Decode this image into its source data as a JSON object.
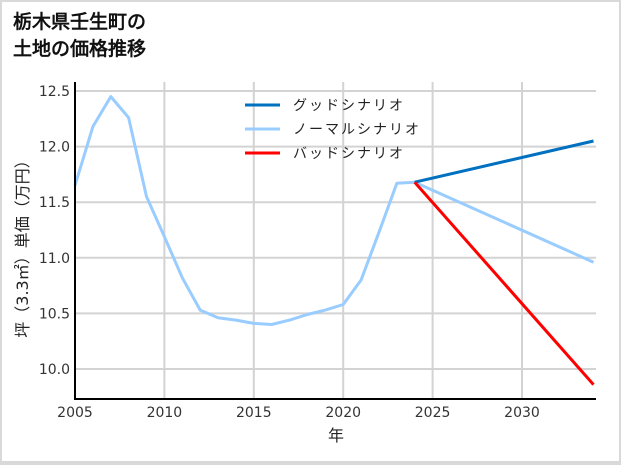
{
  "title_line1": "栃木県壬生町の",
  "title_line2": "土地の価格推移",
  "chart_data": {
    "type": "line",
    "title": "栃木県壬生町の土地の価格推移",
    "xlabel": "年",
    "ylabel": "坪（3.3㎡）単価（万円）",
    "xlim": [
      2005,
      2034
    ],
    "ylim": [
      9.75,
      12.6
    ],
    "grid": true,
    "legend_position": "upper center",
    "x_ticks": [
      2005,
      2010,
      2015,
      2020,
      2025,
      2030
    ],
    "y_ticks": [
      10.0,
      10.5,
      11.0,
      11.5,
      12.0,
      12.5
    ],
    "x_tick_labels": [
      "2005",
      "2010",
      "2015",
      "2020",
      "2025",
      "2030"
    ],
    "y_tick_labels": [
      "10.0",
      "10.5",
      "11.0",
      "11.5",
      "12.0",
      "12.5"
    ],
    "series": [
      {
        "name": "グッドシナリオ",
        "color": "#0070c0",
        "x": [
          2024,
          2034
        ],
        "values": [
          11.68,
          12.05
        ]
      },
      {
        "name": "ノーマルシナリオ",
        "color": "#99ccff",
        "x": [
          2005,
          2006,
          2007,
          2008,
          2009,
          2010,
          2011,
          2012,
          2013,
          2014,
          2015,
          2016,
          2017,
          2018,
          2019,
          2020,
          2021,
          2022,
          2023,
          2024,
          2034
        ],
        "values": [
          11.65,
          12.18,
          12.45,
          12.26,
          11.55,
          11.19,
          10.82,
          10.53,
          10.46,
          10.44,
          10.41,
          10.4,
          10.44,
          10.49,
          10.53,
          10.58,
          10.8,
          11.23,
          11.67,
          11.68,
          10.96
        ]
      },
      {
        "name": "バッドシナリオ",
        "color": "#ff0000",
        "x": [
          2024,
          2034
        ],
        "values": [
          11.68,
          9.86
        ]
      }
    ]
  }
}
